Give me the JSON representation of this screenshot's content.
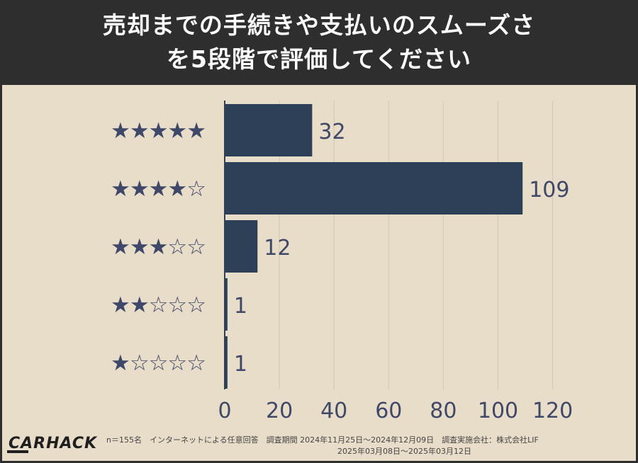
{
  "header": {
    "title_line1": "売却までの手続きや支払いのスムーズさ",
    "title_line2": "を5段階で評価してください"
  },
  "chart_data": {
    "type": "bar",
    "orientation": "horizontal",
    "categories": [
      "★★★★★",
      "★★★★☆",
      "★★★☆☆",
      "★★☆☆☆",
      "★☆☆☆☆"
    ],
    "values": [
      32,
      109,
      12,
      1,
      1
    ],
    "xlim": [
      0,
      120
    ],
    "xticks": [
      "0",
      "20",
      "40",
      "60",
      "80",
      "100",
      "120"
    ],
    "grid": true,
    "bar_color": "#2e4057",
    "label_color": "#3f4868",
    "title": "",
    "xlabel": "",
    "ylabel": ""
  },
  "footer": {
    "logo": "CARHACK",
    "note_line1": "n＝155名　インターネットによる任意回答　調査期間 2024年11月25日～2024年12月09日　調査実施会社：株式会社LIF",
    "note_line2": "2025年03月08日～2025年03月12日"
  }
}
